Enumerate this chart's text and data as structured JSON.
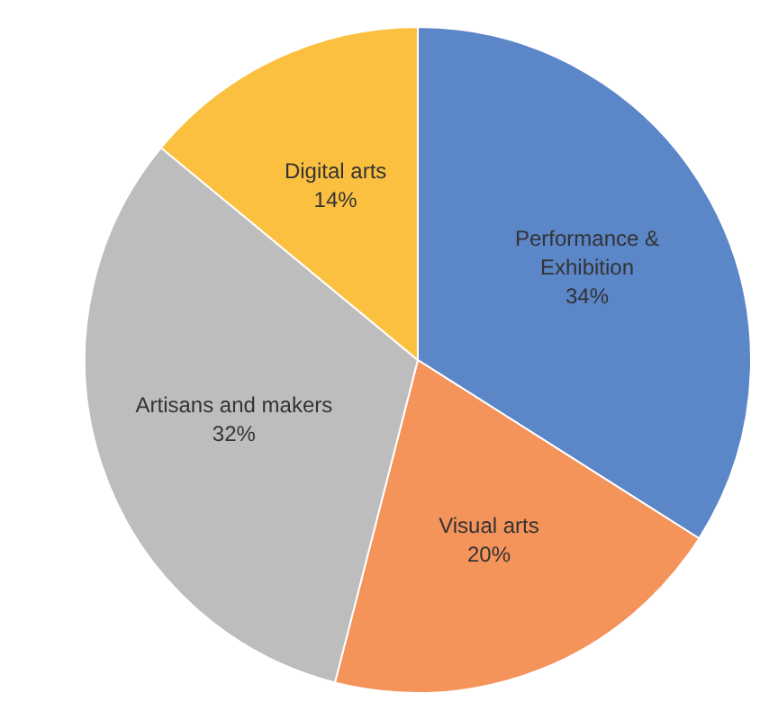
{
  "chart_data": {
    "type": "pie",
    "categories": [
      "Performance & Exhibition",
      "Visual arts",
      "Artisans and makers",
      "Digital arts"
    ],
    "values": [
      34,
      20,
      32,
      14
    ],
    "colors": [
      "#5b86c8",
      "#f4935a",
      "#bdbdbd",
      "#fbc040"
    ],
    "value_labels": [
      "34%",
      "20%",
      "32%",
      "14%"
    ]
  }
}
